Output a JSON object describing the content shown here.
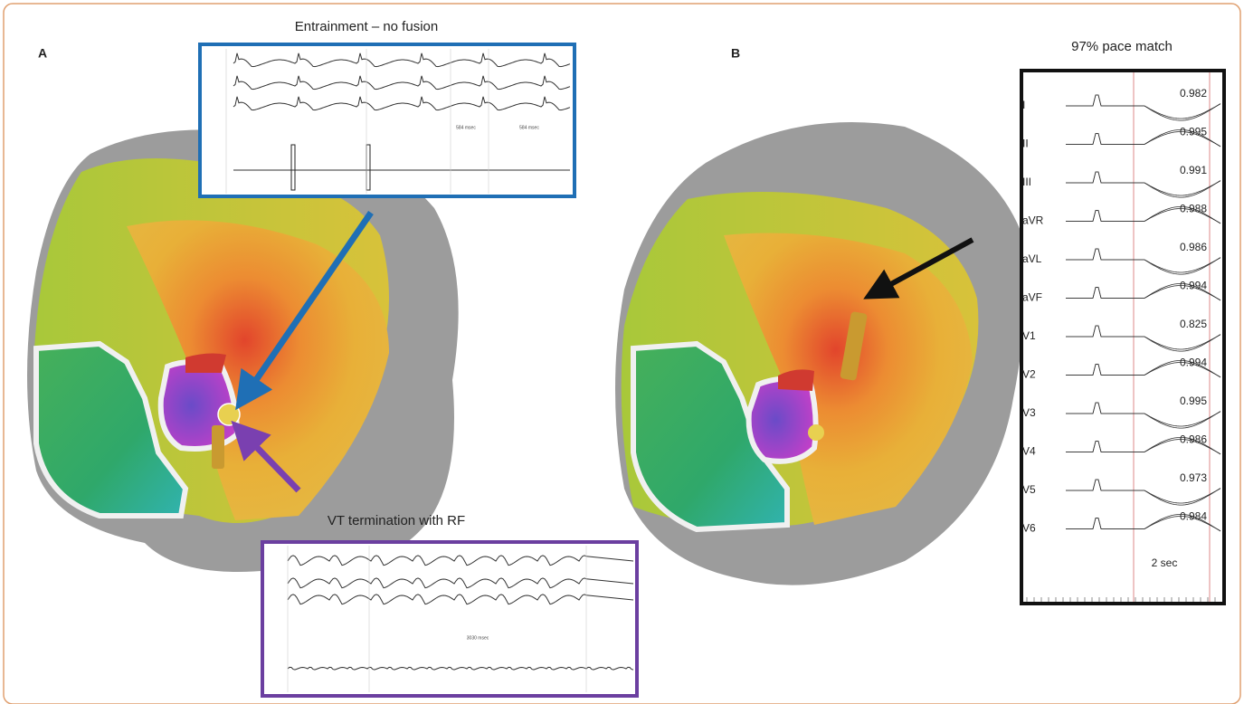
{
  "panel_a": {
    "label": "A",
    "entrainment_title": "Entrainment – no fusion",
    "entrainment_intervals": [
      "584 msec",
      "584 msec"
    ],
    "termination_title": "VT termination with RF",
    "termination_interval": "3030 msec"
  },
  "panel_b": {
    "label": "B",
    "pace_match_title": "97% pace match",
    "scale_label": "2 sec",
    "leads": [
      {
        "name": "I",
        "correlation": "0.982"
      },
      {
        "name": "II",
        "correlation": "0.995"
      },
      {
        "name": "III",
        "correlation": "0.991"
      },
      {
        "name": "aVR",
        "correlation": "0.988"
      },
      {
        "name": "aVL",
        "correlation": "0.986"
      },
      {
        "name": "aVF",
        "correlation": "0.994"
      },
      {
        "name": "V1",
        "correlation": "0.825"
      },
      {
        "name": "V2",
        "correlation": "0.994"
      },
      {
        "name": "V3",
        "correlation": "0.995"
      },
      {
        "name": "V4",
        "correlation": "0.986"
      },
      {
        "name": "V5",
        "correlation": "0.973"
      },
      {
        "name": "V6",
        "correlation": "0.984"
      }
    ]
  }
}
